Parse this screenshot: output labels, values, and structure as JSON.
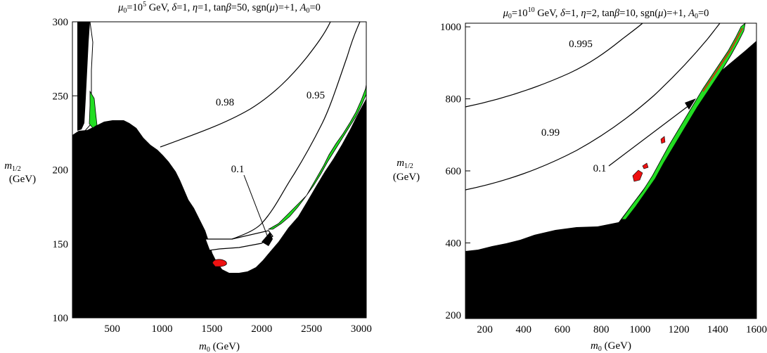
{
  "chart_data": [
    {
      "type": "contour",
      "title_parts": {
        "mu_sym": "μ",
        "mu_sub": "0",
        "mu_eq": "=10",
        "mu_exp": "5",
        "rest_a": " GeV, ",
        "delta": "δ",
        "rest_b": "=1, ",
        "eta": "η",
        "rest_c": "=1, tan",
        "beta": "β",
        "rest_d": "=50, sgn(",
        "mu2": "μ",
        "rest_e": ")=+1, ",
        "A": "A",
        "A_sub": "0",
        "rest_f": "=0"
      },
      "xlabel": {
        "m": "m",
        "sub": "0",
        "unit": " (GeV)"
      },
      "ylabel": {
        "m": "m",
        "sub": "1/2",
        "unit": "(GeV)"
      },
      "xlim": [
        100,
        3050
      ],
      "ylim": [
        100,
        300
      ],
      "xticks": [
        "500",
        "1000",
        "1500",
        "2000",
        "2500",
        "3000"
      ],
      "xtick_values": [
        500,
        1000,
        1500,
        2000,
        2500,
        3000
      ],
      "yticks": [
        "100",
        "150",
        "200",
        "250",
        "300"
      ],
      "ytick_values": [
        100,
        150,
        200,
        250,
        300
      ],
      "contour_labels": [
        "0.98",
        "0.95",
        "0.1"
      ],
      "excluded_region_color": "#000000",
      "green_region_color": "#22dd22",
      "red_region_color": "#ee1111",
      "excluded_boundary": [
        [
          100,
          222
        ],
        [
          200,
          226
        ],
        [
          300,
          231
        ],
        [
          400,
          233
        ],
        [
          500,
          233
        ],
        [
          600,
          230
        ],
        [
          700,
          226
        ],
        [
          800,
          221
        ],
        [
          900,
          214
        ],
        [
          1000,
          209
        ],
        [
          1100,
          201
        ],
        [
          1200,
          190
        ],
        [
          1300,
          176
        ],
        [
          1400,
          160
        ],
        [
          1430,
          150
        ],
        [
          1460,
          142
        ],
        [
          1500,
          134
        ],
        [
          1530,
          128
        ],
        [
          1600,
          129
        ],
        [
          1700,
          132
        ],
        [
          1800,
          135
        ],
        [
          1900,
          138
        ],
        [
          2000,
          144
        ],
        [
          2100,
          150
        ],
        [
          2200,
          157
        ],
        [
          2300,
          166
        ],
        [
          2400,
          176
        ],
        [
          2500,
          188
        ],
        [
          2600,
          201
        ],
        [
          2700,
          214
        ],
        [
          2800,
          227
        ],
        [
          2900,
          238
        ],
        [
          3000,
          246
        ],
        [
          3050,
          250
        ]
      ],
      "contour_0.98": [
        [
          960,
          214
        ],
        [
          1200,
          220
        ],
        [
          1500,
          230
        ],
        [
          1800,
          242
        ],
        [
          2100,
          256
        ],
        [
          2400,
          271
        ],
        [
          2700,
          290
        ],
        [
          2900,
          300
        ]
      ],
      "contour_0.95": [
        [
          1500,
          155
        ],
        [
          1700,
          161
        ],
        [
          1900,
          170
        ],
        [
          2100,
          188
        ],
        [
          2300,
          210
        ],
        [
          2500,
          238
        ],
        [
          2700,
          268
        ],
        [
          2950,
          300
        ]
      ],
      "contour_0.1_label_at": [
        1700,
        197
      ]
    },
    {
      "type": "contour",
      "title_parts": {
        "mu_sym": "μ",
        "mu_sub": "0",
        "mu_eq": "=10",
        "mu_exp": "10",
        "rest_a": " GeV, ",
        "delta": "δ",
        "rest_b": "=1, ",
        "eta": "η",
        "rest_c": "=2, tan",
        "beta": "β",
        "rest_d": "=10, sgn(",
        "mu2": "μ",
        "rest_e": ")=+1, ",
        "A": "A",
        "A_sub": "0",
        "rest_f": "=0"
      },
      "xlabel": {
        "m": "m",
        "sub": "0",
        "unit": " (GeV)"
      },
      "ylabel": {
        "m": "m",
        "sub": "1/2",
        "unit": "(GeV)"
      },
      "xlim": [
        100,
        1600
      ],
      "ylim": [
        190,
        1010
      ],
      "xticks": [
        "200",
        "400",
        "600",
        "800",
        "1000",
        "1200",
        "1400",
        "1600"
      ],
      "xtick_values": [
        200,
        400,
        600,
        800,
        1000,
        1200,
        1400,
        1600
      ],
      "yticks": [
        "200",
        "400",
        "600",
        "800",
        "1000"
      ],
      "ytick_values": [
        200,
        400,
        600,
        800,
        1000
      ],
      "contour_labels": [
        "0.995",
        "0.99",
        "0.1"
      ],
      "excluded_region_color": "#000000",
      "green_region_color": "#22dd22",
      "red_region_color": "#ee1111",
      "excluded_boundary": [
        [
          100,
          378
        ],
        [
          300,
          388
        ],
        [
          500,
          400
        ],
        [
          700,
          418
        ],
        [
          800,
          435
        ],
        [
          900,
          510
        ],
        [
          1000,
          585
        ],
        [
          1100,
          655
        ],
        [
          1200,
          730
        ],
        [
          1300,
          810
        ],
        [
          1400,
          895
        ],
        [
          1500,
          935
        ],
        [
          1600,
          960
        ]
      ],
      "contour_0.995": [
        [
          100,
          775
        ],
        [
          300,
          810
        ],
        [
          500,
          855
        ],
        [
          700,
          910
        ],
        [
          850,
          960
        ],
        [
          960,
          1010
        ]
      ],
      "contour_0.99": [
        [
          100,
          540
        ],
        [
          300,
          580
        ],
        [
          500,
          640
        ],
        [
          700,
          720
        ],
        [
          900,
          810
        ],
        [
          1100,
          910
        ],
        [
          1250,
          1010
        ]
      ],
      "contour_0.1_label_at": [
        895,
        618
      ]
    }
  ]
}
